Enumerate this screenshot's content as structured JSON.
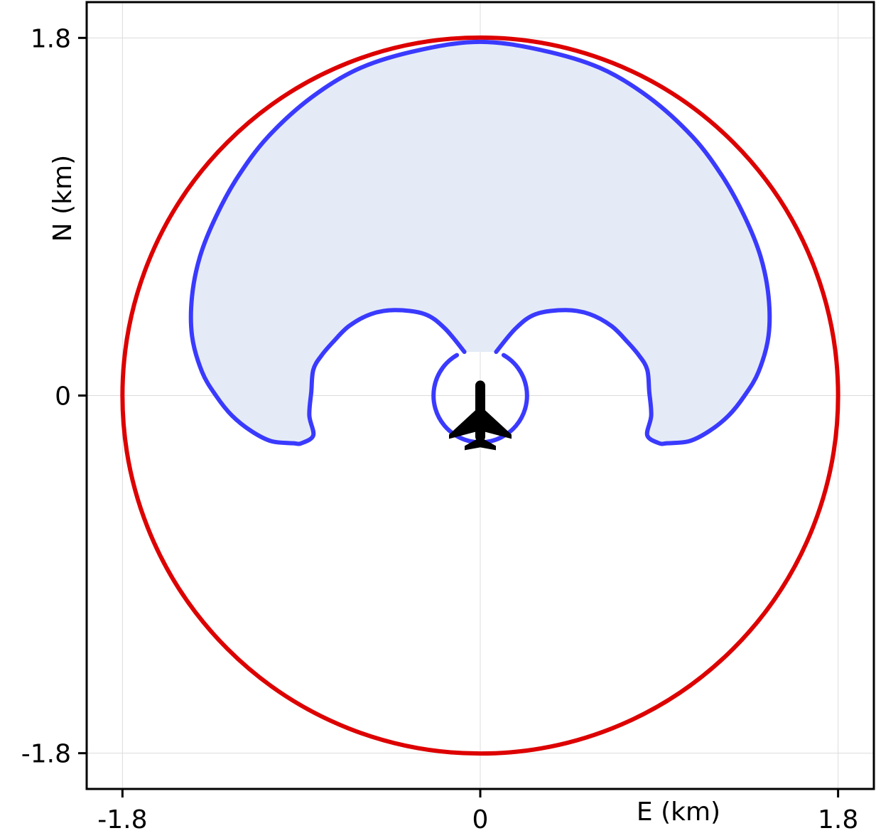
{
  "chart_data": {
    "type": "line",
    "title": "",
    "xlabel": "E (km)",
    "ylabel": "N (km)",
    "xlim": [
      -1.98,
      1.98
    ],
    "ylim": [
      -1.98,
      1.98
    ],
    "xticks": [
      -1.8,
      0,
      1.8
    ],
    "yticks": [
      -1.8,
      0,
      1.8
    ],
    "xtick_labels": [
      "-1.8",
      "0",
      "1.8"
    ],
    "ytick_labels": [
      "-1.8",
      "0",
      "1.8"
    ],
    "grid": true,
    "aircraft_position": [
      0,
      -0.15
    ],
    "aircraft_icon": "airplane-icon",
    "series": [
      {
        "type": "circle",
        "center": [
          0,
          0
        ],
        "radius": 1.8,
        "color": "#dd0000"
      },
      {
        "type": "filled-region",
        "color": "#3a3aff",
        "fill": "#e4ebf6",
        "points": [
          [
            -0.08,
            0.22
          ],
          [
            -0.18,
            0.34
          ],
          [
            -0.28,
            0.41
          ],
          [
            -0.43,
            0.43
          ],
          [
            -0.55,
            0.41
          ],
          [
            -0.66,
            0.35
          ],
          [
            -0.74,
            0.27
          ],
          [
            -0.8,
            0.2
          ],
          [
            -0.84,
            0.13
          ],
          [
            -0.85,
            0.02
          ],
          [
            -0.86,
            -0.1
          ],
          [
            -0.84,
            -0.2
          ],
          [
            -0.9,
            -0.24
          ],
          [
            -0.94,
            -0.24
          ],
          [
            -1.05,
            -0.23
          ],
          [
            -1.15,
            -0.18
          ],
          [
            -1.25,
            -0.1
          ],
          [
            -1.33,
            0.0
          ],
          [
            -1.4,
            0.12
          ],
          [
            -1.45,
            0.3
          ],
          [
            -1.45,
            0.5
          ],
          [
            -1.41,
            0.7
          ],
          [
            -1.33,
            0.9
          ],
          [
            -1.22,
            1.1
          ],
          [
            -1.07,
            1.3
          ],
          [
            -0.85,
            1.5
          ],
          [
            -0.6,
            1.65
          ],
          [
            -0.3,
            1.74
          ],
          [
            0,
            1.78
          ],
          [
            0.3,
            1.74
          ],
          [
            0.6,
            1.65
          ],
          [
            0.85,
            1.5
          ],
          [
            1.07,
            1.3
          ],
          [
            1.22,
            1.1
          ],
          [
            1.33,
            0.9
          ],
          [
            1.41,
            0.7
          ],
          [
            1.45,
            0.5
          ],
          [
            1.45,
            0.3
          ],
          [
            1.4,
            0.12
          ],
          [
            1.33,
            0.0
          ],
          [
            1.25,
            -0.1
          ],
          [
            1.15,
            -0.18
          ],
          [
            1.05,
            -0.23
          ],
          [
            0.94,
            -0.24
          ],
          [
            0.9,
            -0.24
          ],
          [
            0.84,
            -0.2
          ],
          [
            0.86,
            -0.1
          ],
          [
            0.85,
            0.02
          ],
          [
            0.84,
            0.13
          ],
          [
            0.8,
            0.2
          ],
          [
            0.74,
            0.27
          ],
          [
            0.66,
            0.35
          ],
          [
            0.55,
            0.41
          ],
          [
            0.43,
            0.43
          ],
          [
            0.28,
            0.41
          ],
          [
            0.18,
            0.34
          ],
          [
            0.08,
            0.22
          ]
        ]
      },
      {
        "type": "loop",
        "color": "#3a3aff",
        "center": [
          0,
          0
        ],
        "radius": 0.235,
        "gap_degrees": [
          60,
          120
        ]
      }
    ]
  }
}
